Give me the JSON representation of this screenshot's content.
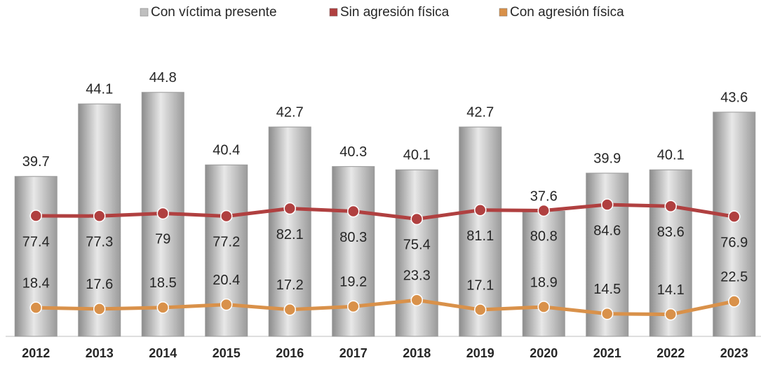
{
  "chart_data": {
    "type": "bar",
    "categories": [
      "2012",
      "2013",
      "2014",
      "2015",
      "2016",
      "2017",
      "2018",
      "2019",
      "2020",
      "2021",
      "2022",
      "2023"
    ],
    "ylim": [
      30,
      47
    ],
    "y2lim": [
      0,
      180
    ],
    "series": [
      {
        "name": "Con víctima presente",
        "type": "bar",
        "color": "#bfbfbf",
        "values": [
          39.7,
          44.1,
          44.8,
          40.4,
          42.7,
          40.3,
          40.1,
          42.7,
          37.6,
          39.9,
          40.1,
          43.6
        ]
      },
      {
        "name": "Sin agresión física",
        "type": "line",
        "axis": "y2",
        "color": "#b04040",
        "values": [
          77.4,
          77.3,
          79,
          77.2,
          82.1,
          80.3,
          75.4,
          81.1,
          80.8,
          84.6,
          83.6,
          76.9
        ]
      },
      {
        "name": "Con agresión física",
        "type": "line",
        "axis": "y2",
        "color": "#d9914a",
        "values": [
          18.4,
          17.6,
          18.5,
          20.4,
          17.2,
          19.2,
          23.3,
          17.1,
          18.9,
          14.5,
          14.1,
          22.5
        ]
      }
    ]
  }
}
